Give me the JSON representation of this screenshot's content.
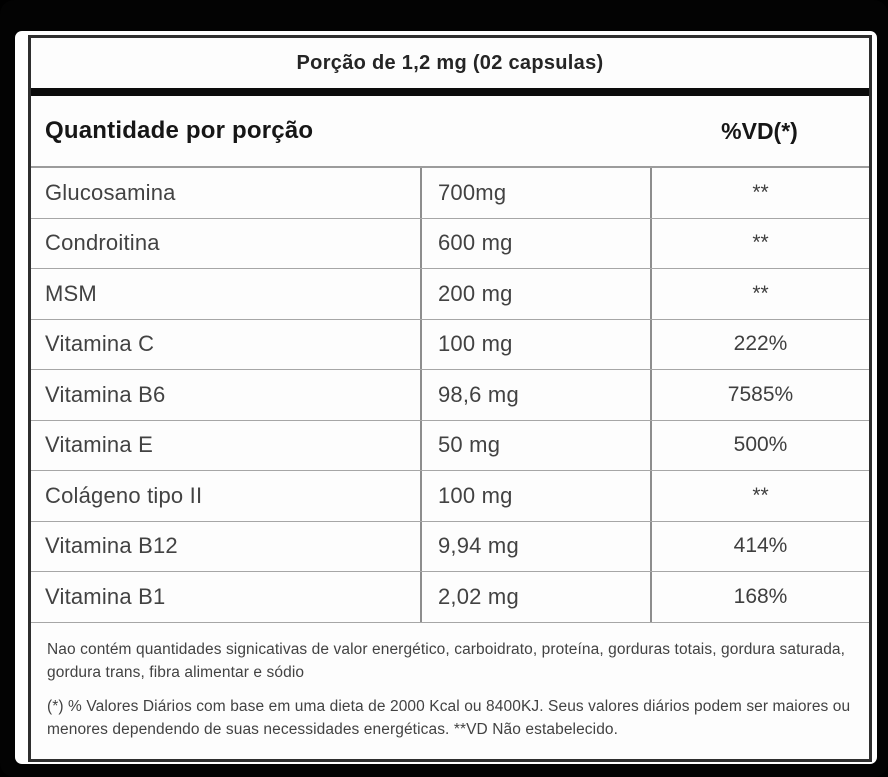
{
  "serving_header": "Porção de 1,2 mg (02 capsulas)",
  "columns_header": {
    "quantity": "Quantidade por porção",
    "dv": "%VD(*)"
  },
  "rows": [
    {
      "name": "Glucosamina",
      "amount": "700mg",
      "dv": "**"
    },
    {
      "name": "Condroitina",
      "amount": "600 mg",
      "dv": "**"
    },
    {
      "name": "MSM",
      "amount": "200 mg",
      "dv": "**"
    },
    {
      "name": "Vitamina C",
      "amount": "100 mg",
      "dv": "222%"
    },
    {
      "name": "Vitamina B6",
      "amount": "98,6 mg",
      "dv": "7585%"
    },
    {
      "name": "Vitamina E",
      "amount": "50 mg",
      "dv": "500%"
    },
    {
      "name": "Colágeno tipo II",
      "amount": "100 mg",
      "dv": "**"
    },
    {
      "name": "Vitamina B12",
      "amount": "9,94 mg",
      "dv": "414%"
    },
    {
      "name": "Vitamina B1",
      "amount": "2,02 mg",
      "dv": "168%"
    }
  ],
  "footnotes": [
    "Nao contém quantidades signicativas de valor energético, carboidrato, proteína, gorduras totais, gordura saturada, gordura trans, fibra alimentar e sódio",
    "(*) % Valores Diários com base em uma dieta de 2000 Kcal ou 8400KJ. Seus valores diários podem ser maiores ou menores dependendo de suas necessidades energéticas. **VD Não estabelecido."
  ],
  "colors": {
    "frame": "#030303",
    "panel": "#ffffff",
    "table_border": "#2f2f2f",
    "thick_bar": "#0b0b0b",
    "row_line": "#a6a6a6",
    "column_line": "#8d8d8d",
    "header_text": "#161616",
    "body_text": "#424242"
  }
}
